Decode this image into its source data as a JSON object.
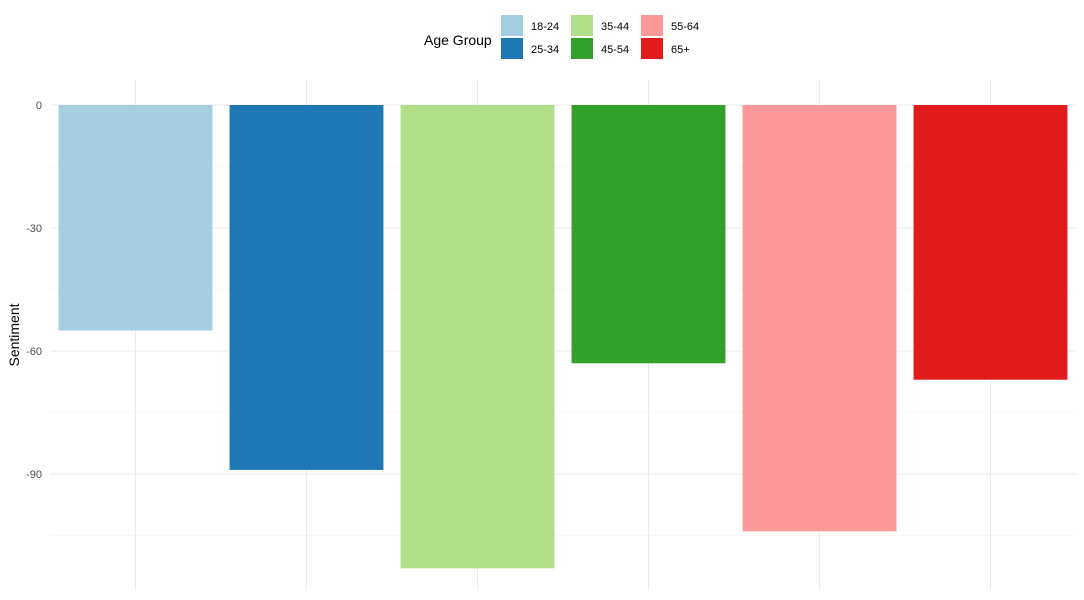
{
  "chart_data": {
    "type": "bar",
    "title": "",
    "xlabel": "",
    "ylabel": "Sentiment",
    "categories": [
      "18-24",
      "25-34",
      "35-44",
      "45-54",
      "55-64",
      "65+"
    ],
    "values": [
      -55,
      -89,
      -113,
      -63,
      -104,
      -67
    ],
    "colors": [
      "#a6cee3",
      "#1f78b4",
      "#b2df8a",
      "#33a02c",
      "#fb9a99",
      "#e31a1c"
    ],
    "ylim": [
      -118,
      5
    ],
    "yticks": [
      0,
      -30,
      -60,
      -90
    ],
    "ytick_labels": [
      "0",
      "-30",
      "-60",
      "-90"
    ],
    "grid": true,
    "x_tick_labels_shown": false,
    "legend": {
      "title": "Age Group",
      "position": "top",
      "entries": [
        "18-24",
        "25-34",
        "35-44",
        "45-54",
        "55-64",
        "65+"
      ]
    }
  }
}
